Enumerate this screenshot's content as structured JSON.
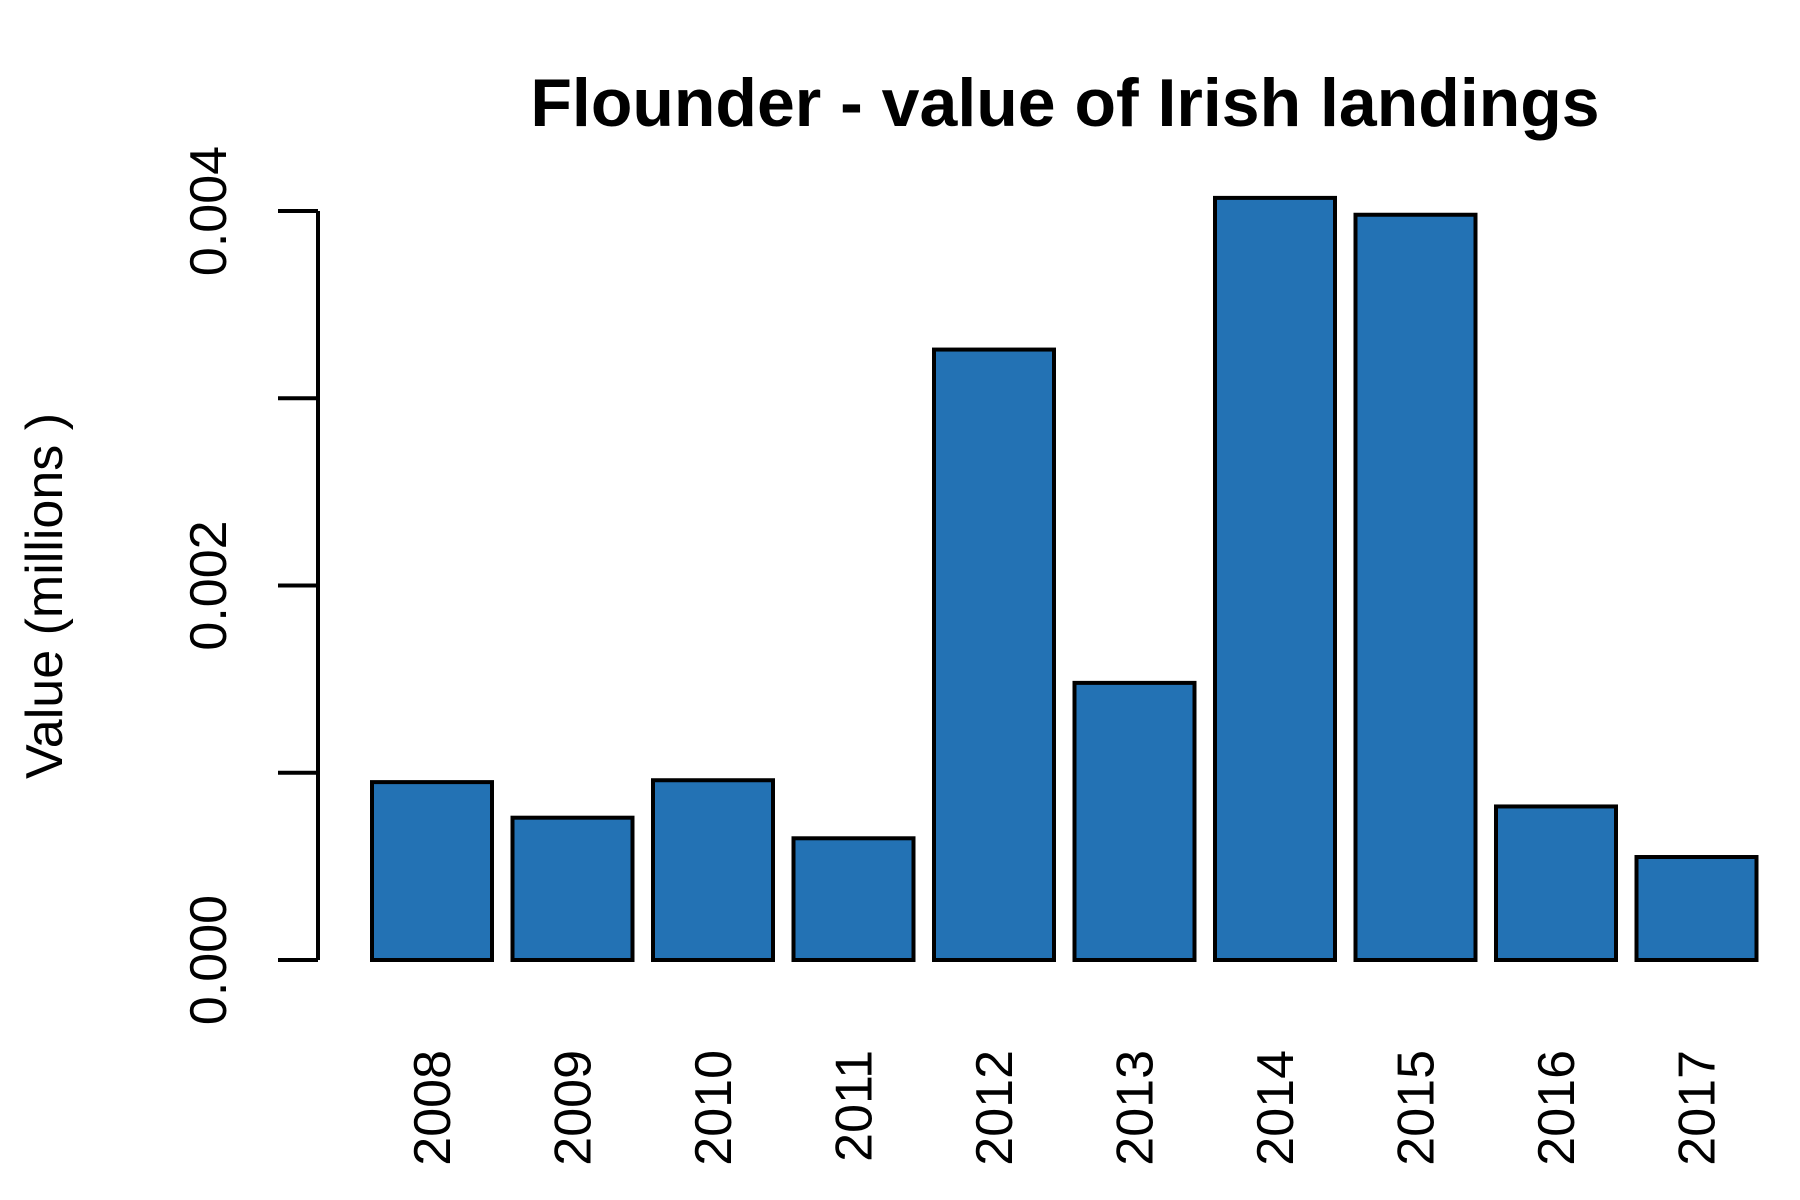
{
  "chart_data": {
    "type": "bar",
    "title": "Flounder - value of Irish landings",
    "xlabel": "",
    "ylabel": "Value (millions )",
    "categories": [
      "2008",
      "2009",
      "2010",
      "2011",
      "2012",
      "2013",
      "2014",
      "2015",
      "2016",
      "2017"
    ],
    "values": [
      0.00095,
      0.00076,
      0.00096,
      0.00065,
      0.00326,
      0.00148,
      0.00407,
      0.00398,
      0.00082,
      0.00055
    ],
    "ylim": [
      0,
      0.004
    ],
    "yticks": [
      0.0,
      0.001,
      0.002,
      0.003,
      0.004
    ],
    "ytick_labels": [
      "0.000",
      "",
      "0.002",
      "",
      "0.004"
    ],
    "bar_color": "#2372B4",
    "grid": false,
    "legend": "none"
  }
}
